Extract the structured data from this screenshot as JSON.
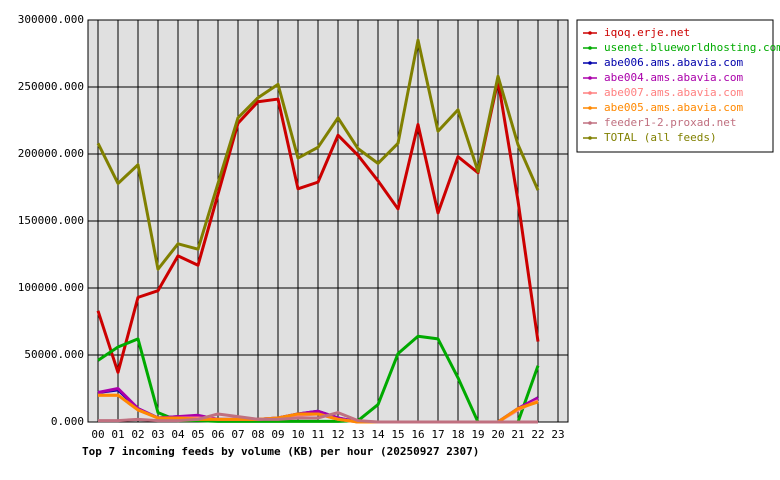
{
  "chart_data": {
    "type": "line",
    "title": "Top 7 incoming feeds by volume (KB) per hour (20250927 2307)",
    "categories": [
      "00",
      "01",
      "02",
      "03",
      "04",
      "05",
      "06",
      "07",
      "08",
      "09",
      "10",
      "11",
      "12",
      "13",
      "14",
      "15",
      "16",
      "17",
      "18",
      "19",
      "20",
      "21",
      "22",
      "23"
    ],
    "ylim": [
      0,
      300000
    ],
    "yticks": [
      {
        "value": 0,
        "label": "0.000"
      },
      {
        "value": 50000,
        "label": "50000.000"
      },
      {
        "value": 100000,
        "label": "100000.000"
      },
      {
        "value": 150000,
        "label": "150000.000"
      },
      {
        "value": 200000,
        "label": "200000.000"
      },
      {
        "value": 250000,
        "label": "250000.000"
      },
      {
        "value": 300000,
        "label": "300000.000"
      }
    ],
    "grid": true,
    "legend": "right",
    "series": [
      {
        "name": "iqoq.erje.net",
        "color": "#cc0000",
        "values": [
          83000,
          37000,
          93000,
          98000,
          124000,
          117000,
          170000,
          223000,
          239000,
          241000,
          174000,
          179000,
          214000,
          199000,
          180000,
          159000,
          222000,
          156000,
          198000,
          186000,
          255000,
          165000,
          60000,
          null
        ]
      },
      {
        "name": "usenet.blueworldhosting.com",
        "color": "#00aa00",
        "values": [
          46000,
          56000,
          62000,
          7000,
          1000,
          1000,
          500,
          500,
          500,
          500,
          500,
          500,
          500,
          1000,
          13000,
          51000,
          64000,
          62000,
          33000,
          0,
          0,
          0,
          42000,
          null
        ]
      },
      {
        "name": "abe006.ams.abavia.com",
        "color": "#0000aa",
        "values": [
          22000,
          24000,
          10000,
          3000,
          4000,
          4000,
          2000,
          2000,
          2000,
          3000,
          6000,
          8000,
          3000,
          0,
          0,
          0,
          0,
          0,
          0,
          0,
          0,
          10000,
          18000,
          null
        ]
      },
      {
        "name": "abe004.ams.abavia.com",
        "color": "#aa00aa",
        "values": [
          22000,
          25000,
          10000,
          3000,
          4000,
          5000,
          2000,
          2000,
          2000,
          3000,
          6000,
          8000,
          3000,
          0,
          0,
          0,
          0,
          0,
          0,
          0,
          0,
          10000,
          18000,
          null
        ]
      },
      {
        "name": "abe007.ams.abavia.com",
        "color": "#ff8080",
        "values": [
          20000,
          20000,
          9000,
          3000,
          3000,
          3000,
          2000,
          2000,
          2000,
          3000,
          5000,
          6000,
          2000,
          0,
          0,
          0,
          0,
          0,
          0,
          0,
          0,
          9000,
          16000,
          null
        ]
      },
      {
        "name": "abe005.ams.abavia.com",
        "color": "#ff8800",
        "values": [
          20000,
          20000,
          9000,
          3000,
          3000,
          2000,
          2000,
          2000,
          2000,
          3000,
          6000,
          6000,
          2000,
          0,
          0,
          0,
          0,
          0,
          0,
          0,
          0,
          10000,
          15000,
          null
        ]
      },
      {
        "name": "feeder1-2.proxad.net",
        "color": "#c07080",
        "values": [
          1000,
          1000,
          2000,
          1000,
          1000,
          2000,
          6000,
          4000,
          2000,
          2000,
          3000,
          3000,
          7000,
          1000,
          0,
          0,
          0,
          0,
          0,
          0,
          0,
          0,
          0,
          null
        ]
      },
      {
        "name": "TOTAL (all feeds)",
        "color": "#808000",
        "values": [
          208000,
          178000,
          192000,
          114000,
          133000,
          129000,
          178000,
          227000,
          242000,
          252000,
          197000,
          205000,
          227000,
          204000,
          193000,
          208000,
          285000,
          217000,
          233000,
          187000,
          258000,
          207000,
          173000,
          null
        ]
      }
    ]
  }
}
